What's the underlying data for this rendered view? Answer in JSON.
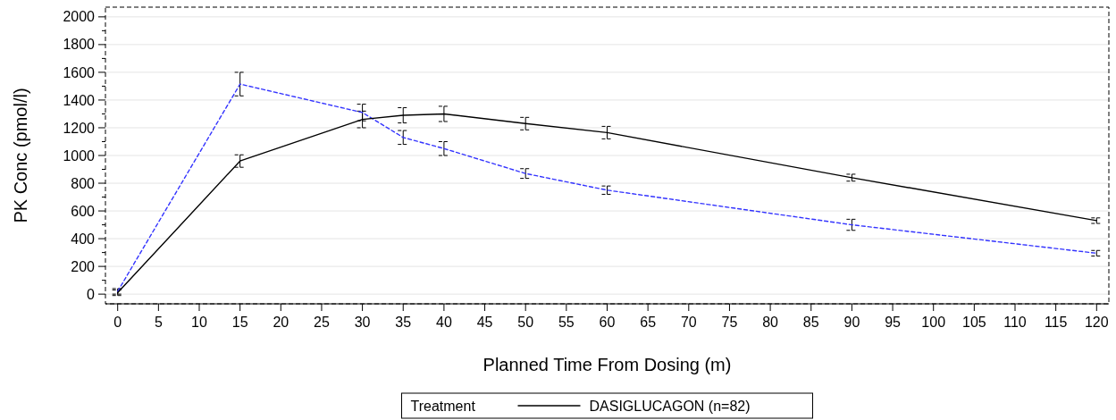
{
  "chart_data": {
    "type": "line",
    "xlabel": "Planned Time From Dosing (m)",
    "ylabel": "PK Conc (pmol/l)",
    "legend_title": "Treatment",
    "legend": "bottom",
    "grid": "y",
    "xlim": [
      -1.5,
      121.5
    ],
    "xticks": [
      0,
      5,
      10,
      15,
      20,
      25,
      30,
      35,
      40,
      45,
      50,
      55,
      60,
      65,
      70,
      75,
      80,
      85,
      90,
      95,
      100,
      105,
      110,
      115,
      120
    ],
    "ylim": [
      -70,
      2070
    ],
    "yticks": [
      0,
      {
        "value": 100,
        "label": null
      },
      200,
      {
        "value": 300,
        "label": null
      },
      400,
      {
        "value": 500,
        "label": null
      },
      600,
      {
        "value": 700,
        "label": null
      },
      800,
      {
        "value": 900,
        "label": null
      },
      1000,
      {
        "value": 1100,
        "label": null
      },
      1200,
      {
        "value": 1300,
        "label": null
      },
      1400,
      {
        "value": 1500,
        "label": null
      },
      1600,
      {
        "value": 1700,
        "label": null
      },
      1800,
      {
        "value": 1900,
        "label": null
      },
      2000
    ],
    "x": [
      0,
      15,
      30,
      35,
      40,
      50,
      60,
      90,
      120
    ],
    "series": [
      {
        "name": "DASIGLUCAGON (n=82)",
        "color": "#000000",
        "line_style": "solid",
        "values": [
          10,
          960,
          1260,
          1290,
          1300,
          1230,
          1165,
          840,
          530
        ],
        "errors": [
          20,
          45,
          60,
          55,
          55,
          45,
          45,
          25,
          20
        ]
      },
      {
        "color": "#3333ff",
        "line_style": "dashed",
        "values": [
          20,
          1515,
          1310,
          1130,
          1050,
          870,
          750,
          500,
          295
        ],
        "errors": [
          20,
          85,
          60,
          50,
          50,
          35,
          30,
          40,
          20
        ]
      }
    ]
  }
}
